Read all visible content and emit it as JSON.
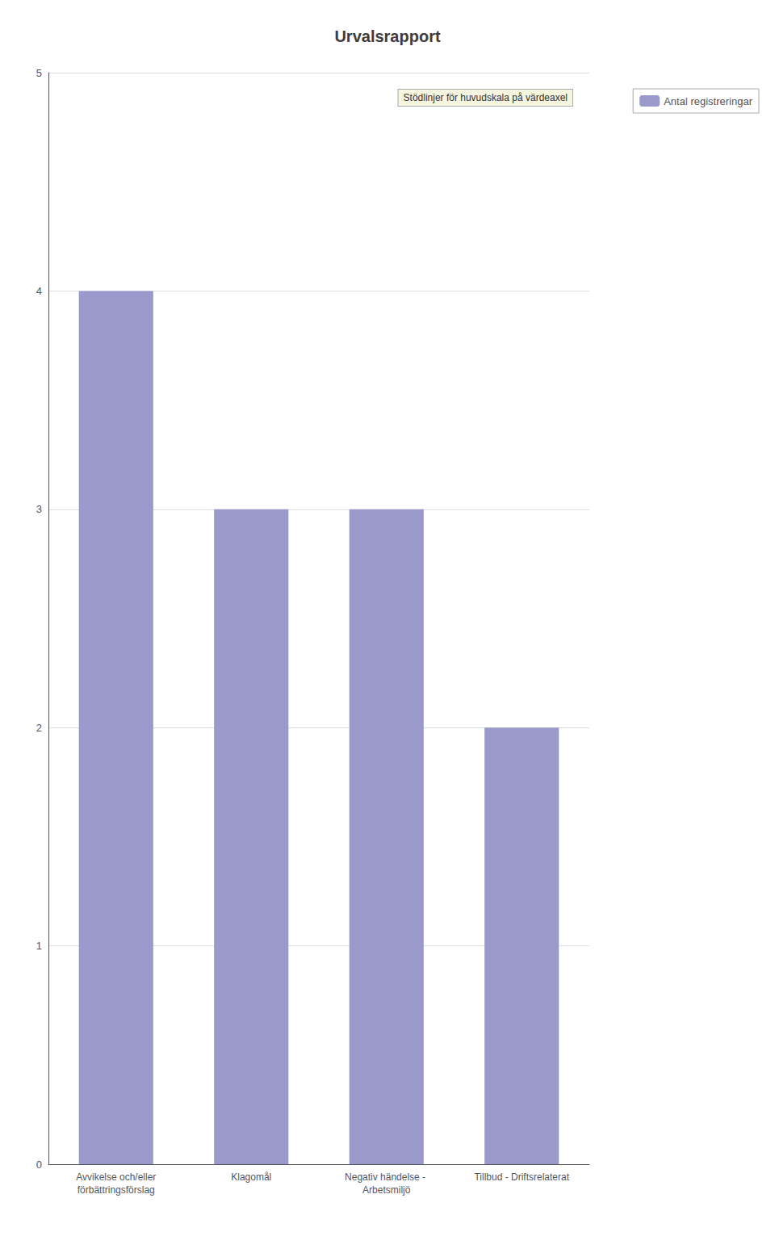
{
  "chart_data": {
    "type": "bar",
    "title": "Urvalsrapport",
    "categories": [
      "Avvikelse och/eller\nförbättringsförslag",
      "Klagomål",
      "Negativ händelse - Arbetsmiljö",
      "Tillbud - Driftsrelaterat"
    ],
    "series": [
      {
        "name": "Antal registreringar",
        "color": "#9999cc",
        "values": [
          4,
          3,
          3,
          2
        ]
      }
    ],
    "ylim": [
      0,
      5
    ],
    "yticks": [
      0,
      1,
      2,
      3,
      4,
      5
    ],
    "grid": true,
    "legend": "right",
    "annotation": "Stödlinjer för huvudskala på värdeaxel"
  }
}
